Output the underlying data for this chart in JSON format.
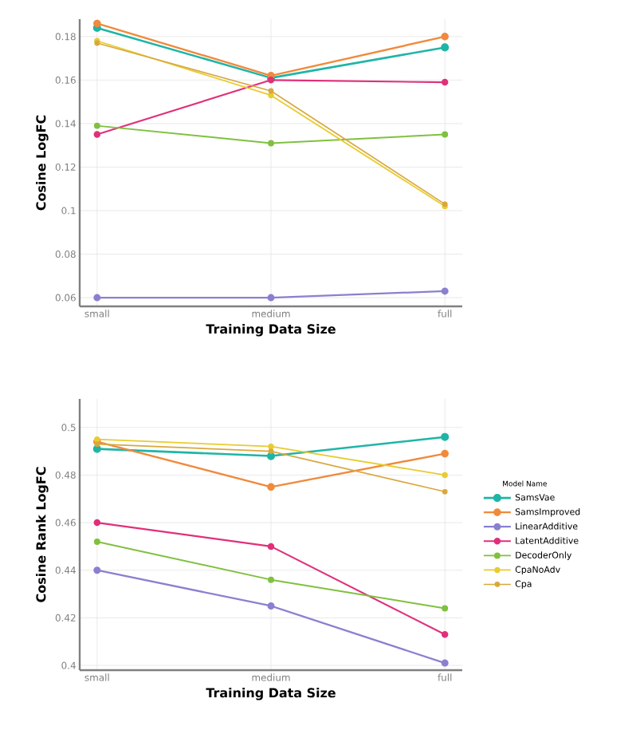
{
  "chart_data": [
    {
      "type": "line",
      "xlabel": "Training Data Size",
      "ylabel": "Cosine LogFC",
      "categories": [
        "small",
        "medium",
        "full"
      ],
      "series": [
        {
          "color": "#1fb5a6",
          "values": [
            0.184,
            0.161,
            0.175
          ]
        },
        {
          "color": "#f08a3c",
          "values": [
            0.186,
            0.162,
            0.18
          ]
        },
        {
          "color": "#8a80d0",
          "values": [
            0.06,
            0.06,
            0.063
          ]
        },
        {
          "color": "#e0307a",
          "values": [
            0.135,
            0.16,
            0.159
          ]
        },
        {
          "color": "#80c040",
          "values": [
            0.139,
            0.131,
            0.135
          ]
        },
        {
          "color": "#e8cc30",
          "values": [
            0.178,
            0.153,
            0.102
          ]
        },
        {
          "color": "#d8a840",
          "values": [
            0.177,
            0.155,
            0.103
          ]
        }
      ],
      "ylim": [
        0.056,
        0.188
      ],
      "yticks": [
        0.06,
        0.08,
        0.1,
        0.12,
        0.14,
        0.16,
        0.18
      ],
      "grid": true,
      "marker": "circle",
      "line_style": "solid"
    },
    {
      "type": "line",
      "xlabel": "Training Data Size",
      "ylabel": "Cosine Rank LogFC",
      "legend_title": "Model Name",
      "categories": [
        "small",
        "medium",
        "full"
      ],
      "series": [
        {
          "name": "SamsVae",
          "color": "#1fb5a6",
          "values": [
            0.491,
            0.488,
            0.496
          ]
        },
        {
          "name": "SamsImproved",
          "color": "#f08a3c",
          "values": [
            0.494,
            0.475,
            0.489
          ]
        },
        {
          "name": "LinearAdditive",
          "color": "#8a80d0",
          "values": [
            0.44,
            0.425,
            0.401
          ]
        },
        {
          "name": "LatentAdditive",
          "color": "#e0307a",
          "values": [
            0.46,
            0.45,
            0.413
          ]
        },
        {
          "name": "DecoderOnly",
          "color": "#80c040",
          "values": [
            0.452,
            0.436,
            0.424
          ]
        },
        {
          "name": "CpaNoAdv",
          "color": "#e8cc30",
          "values": [
            0.495,
            0.492,
            0.48
          ]
        },
        {
          "name": "Cpa",
          "color": "#d8a840",
          "values": [
            0.493,
            0.49,
            0.473
          ]
        }
      ],
      "ylim": [
        0.398,
        0.512
      ],
      "yticks": [
        0.4,
        0.42,
        0.44,
        0.46,
        0.48,
        0.5
      ],
      "grid": true,
      "marker": "circle",
      "line_style": "solid",
      "legend": "right"
    }
  ]
}
